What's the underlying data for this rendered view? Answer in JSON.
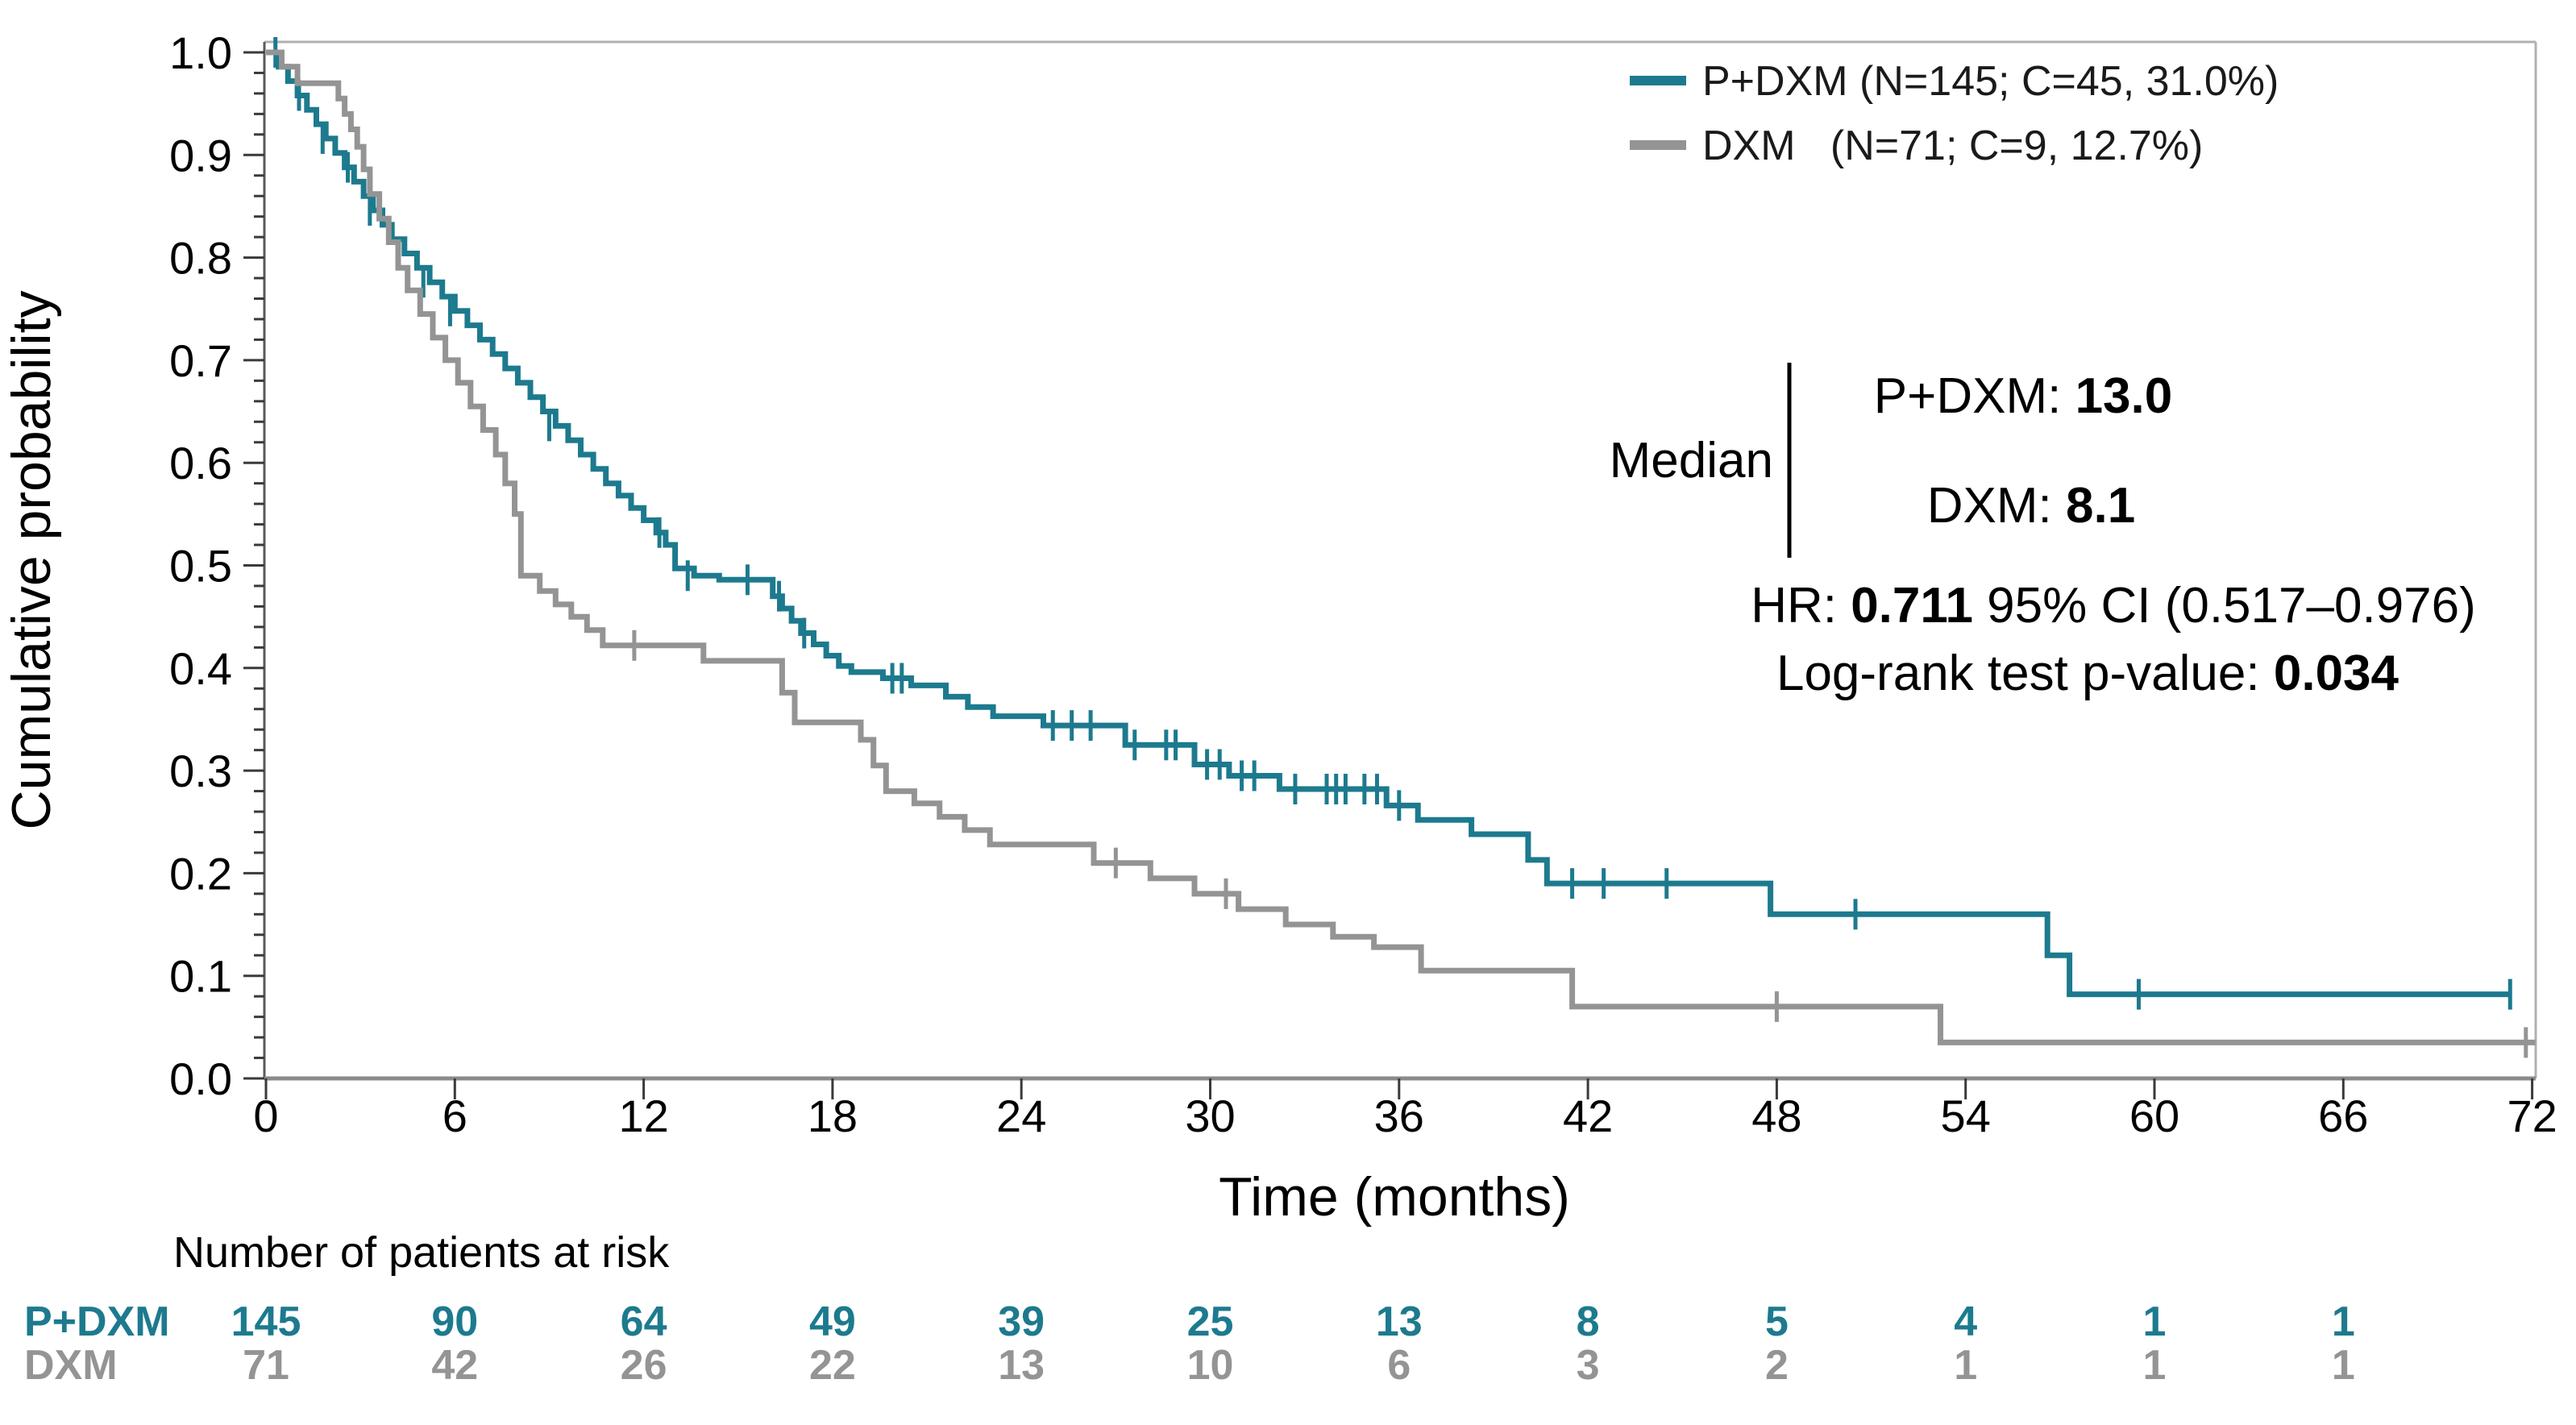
{
  "page": {
    "title": "Kaplan-Meier cumulative probability by treatment group",
    "background": "#ffffff"
  },
  "y_axis": {
    "label": "Cumulative probability"
  },
  "x_axis": {
    "label": "Time (months)"
  },
  "legend": {
    "items": [
      {
        "label": "P+DXM (N=145; C=45, 31.0%)",
        "color": "#1d7a8e"
      },
      {
        "label": "DXM   (N=71; C=9, 12.7%)",
        "color": "#949494"
      }
    ]
  },
  "annotations": {
    "median_label": "Median",
    "median_line1_name": "P+DXM: ",
    "median_line1_value": "13.0",
    "median_line2_name": "DXM: ",
    "median_line2_value": "8.1",
    "hr_prefix": "HR: ",
    "hr_value": "0.711",
    "hr_suffix": " 95% CI (0.517–0.976)",
    "logrank_prefix": "Log-rank test p-value: ",
    "logrank_value": "0.034"
  },
  "risk_table": {
    "title": "Number of patients at risk",
    "time_points": [
      0,
      6,
      12,
      18,
      24,
      30,
      36,
      42,
      48,
      54,
      60,
      66
    ],
    "rows": [
      {
        "label": "P+DXM",
        "color": "#1d7a8e",
        "values": [
          "145",
          "90",
          "64",
          "49",
          "39",
          "25",
          "13",
          "8",
          "5",
          "4",
          "1",
          "1"
        ]
      },
      {
        "label": "DXM",
        "color": "#949494",
        "values": [
          "71",
          "42",
          "26",
          "22",
          "13",
          "10",
          "6",
          "3",
          "2",
          "1",
          "1",
          "1"
        ]
      }
    ]
  },
  "chart_data": {
    "type": "line",
    "subtype": "kaplan_meier_step",
    "title": "",
    "xlabel": "Time (months)",
    "ylabel": "Cumulative probability",
    "xlim": [
      0,
      72
    ],
    "ylim": [
      0.0,
      1.0
    ],
    "x_ticks": [
      0,
      6,
      12,
      18,
      24,
      30,
      36,
      42,
      48,
      54,
      60,
      66,
      72
    ],
    "y_tick_step": 0.1,
    "y_minor_tick_step": 0.02,
    "grid": false,
    "legend_position": "top-right",
    "series": [
      {
        "name": "P+DXM",
        "n": 145,
        "censored": 45,
        "censored_pct": "31.0%",
        "median": 13.0,
        "color": "#1d7a8e",
        "steps": [
          [
            0,
            1.0
          ],
          [
            0.4,
            0.986
          ],
          [
            0.7,
            0.972
          ],
          [
            1.0,
            0.958
          ],
          [
            1.3,
            0.944
          ],
          [
            1.6,
            0.93
          ],
          [
            1.9,
            0.916
          ],
          [
            2.2,
            0.902
          ],
          [
            2.5,
            0.888
          ],
          [
            2.8,
            0.874
          ],
          [
            3.1,
            0.86
          ],
          [
            3.4,
            0.846
          ],
          [
            3.7,
            0.832
          ],
          [
            4.0,
            0.818
          ],
          [
            4.4,
            0.804
          ],
          [
            4.8,
            0.79
          ],
          [
            5.2,
            0.776
          ],
          [
            5.6,
            0.762
          ],
          [
            6.0,
            0.748
          ],
          [
            6.4,
            0.734
          ],
          [
            6.8,
            0.72
          ],
          [
            7.2,
            0.706
          ],
          [
            7.6,
            0.692
          ],
          [
            8.0,
            0.678
          ],
          [
            8.4,
            0.664
          ],
          [
            8.8,
            0.65
          ],
          [
            9.2,
            0.636
          ],
          [
            9.6,
            0.622
          ],
          [
            10.0,
            0.608
          ],
          [
            10.4,
            0.594
          ],
          [
            10.8,
            0.58
          ],
          [
            11.2,
            0.568
          ],
          [
            11.6,
            0.556
          ],
          [
            12.0,
            0.544
          ],
          [
            12.4,
            0.532
          ],
          [
            12.7,
            0.52
          ],
          [
            13.0,
            0.497
          ],
          [
            13.6,
            0.49
          ],
          [
            14.4,
            0.486
          ],
          [
            16.1,
            0.47
          ],
          [
            16.4,
            0.458
          ],
          [
            16.7,
            0.446
          ],
          [
            17.0,
            0.434
          ],
          [
            17.4,
            0.423
          ],
          [
            17.8,
            0.412
          ],
          [
            18.2,
            0.402
          ],
          [
            18.6,
            0.396
          ],
          [
            19.6,
            0.39
          ],
          [
            20.5,
            0.383
          ],
          [
            21.6,
            0.372
          ],
          [
            22.3,
            0.362
          ],
          [
            23.1,
            0.353
          ],
          [
            24.7,
            0.344
          ],
          [
            27.3,
            0.325
          ],
          [
            29.5,
            0.306
          ],
          [
            30.6,
            0.295
          ],
          [
            32.2,
            0.282
          ],
          [
            35.6,
            0.266
          ],
          [
            36.6,
            0.252
          ],
          [
            38.3,
            0.238
          ],
          [
            40.1,
            0.213
          ],
          [
            40.7,
            0.19
          ],
          [
            47.8,
            0.16
          ],
          [
            56.6,
            0.12
          ],
          [
            57.3,
            0.082
          ]
        ],
        "end_time": 71.3,
        "censor_marks": [
          [
            0.3,
            1.0
          ],
          [
            1.05,
            0.958
          ],
          [
            1.8,
            0.916
          ],
          [
            2.6,
            0.888
          ],
          [
            3.3,
            0.846
          ],
          [
            4.2,
            0.804
          ],
          [
            5.0,
            0.776
          ],
          [
            5.85,
            0.748
          ],
          [
            9.0,
            0.636
          ],
          [
            12.5,
            0.532
          ],
          [
            13.4,
            0.49
          ],
          [
            15.3,
            0.486
          ],
          [
            16.3,
            0.47
          ],
          [
            17.1,
            0.434
          ],
          [
            19.9,
            0.39
          ],
          [
            20.2,
            0.39
          ],
          [
            25.0,
            0.344
          ],
          [
            25.6,
            0.344
          ],
          [
            26.2,
            0.344
          ],
          [
            27.6,
            0.325
          ],
          [
            28.6,
            0.325
          ],
          [
            28.9,
            0.325
          ],
          [
            29.9,
            0.306
          ],
          [
            30.3,
            0.306
          ],
          [
            31.0,
            0.295
          ],
          [
            31.4,
            0.295
          ],
          [
            32.7,
            0.282
          ],
          [
            33.7,
            0.282
          ],
          [
            34.0,
            0.282
          ],
          [
            34.3,
            0.282
          ],
          [
            34.9,
            0.282
          ],
          [
            35.3,
            0.282
          ],
          [
            36.0,
            0.266
          ],
          [
            41.5,
            0.19
          ],
          [
            42.5,
            0.19
          ],
          [
            44.5,
            0.19
          ],
          [
            50.5,
            0.16
          ],
          [
            59.5,
            0.082
          ],
          [
            71.3,
            0.082
          ]
        ]
      },
      {
        "name": "DXM",
        "n": 71,
        "censored": 9,
        "censored_pct": "12.7%",
        "median": 8.1,
        "color": "#949494",
        "steps": [
          [
            0,
            1.0
          ],
          [
            0.5,
            0.986
          ],
          [
            1.0,
            0.97
          ],
          [
            2.3,
            0.955
          ],
          [
            2.5,
            0.94
          ],
          [
            2.7,
            0.925
          ],
          [
            2.9,
            0.908
          ],
          [
            3.1,
            0.886
          ],
          [
            3.3,
            0.862
          ],
          [
            3.6,
            0.838
          ],
          [
            3.9,
            0.815
          ],
          [
            4.2,
            0.79
          ],
          [
            4.5,
            0.768
          ],
          [
            4.9,
            0.745
          ],
          [
            5.3,
            0.722
          ],
          [
            5.7,
            0.7
          ],
          [
            6.1,
            0.678
          ],
          [
            6.5,
            0.655
          ],
          [
            6.9,
            0.632
          ],
          [
            7.3,
            0.608
          ],
          [
            7.6,
            0.58
          ],
          [
            7.9,
            0.55
          ],
          [
            8.1,
            0.49
          ],
          [
            8.7,
            0.475
          ],
          [
            9.2,
            0.462
          ],
          [
            9.7,
            0.45
          ],
          [
            10.2,
            0.437
          ],
          [
            10.7,
            0.422
          ],
          [
            13.9,
            0.407
          ],
          [
            16.4,
            0.376
          ],
          [
            16.8,
            0.347
          ],
          [
            18.9,
            0.33
          ],
          [
            19.3,
            0.305
          ],
          [
            19.7,
            0.28
          ],
          [
            20.6,
            0.268
          ],
          [
            21.4,
            0.255
          ],
          [
            22.2,
            0.242
          ],
          [
            23.0,
            0.228
          ],
          [
            26.3,
            0.21
          ],
          [
            28.1,
            0.195
          ],
          [
            29.5,
            0.18
          ],
          [
            30.9,
            0.165
          ],
          [
            32.4,
            0.15
          ],
          [
            33.9,
            0.138
          ],
          [
            35.2,
            0.128
          ],
          [
            36.7,
            0.105
          ],
          [
            41.5,
            0.07
          ],
          [
            53.2,
            0.035
          ]
        ],
        "end_time": 72.1,
        "censor_marks": [
          [
            11.7,
            0.422
          ],
          [
            27.0,
            0.21
          ],
          [
            30.5,
            0.18
          ],
          [
            48.0,
            0.07
          ],
          [
            71.8,
            0.035
          ]
        ]
      }
    ],
    "statistics": {
      "hazard_ratio": 0.711,
      "ci_95": "0.517-0.976",
      "logrank_p": 0.034,
      "median_pdxm": 13.0,
      "median_dxm": 8.1
    }
  }
}
